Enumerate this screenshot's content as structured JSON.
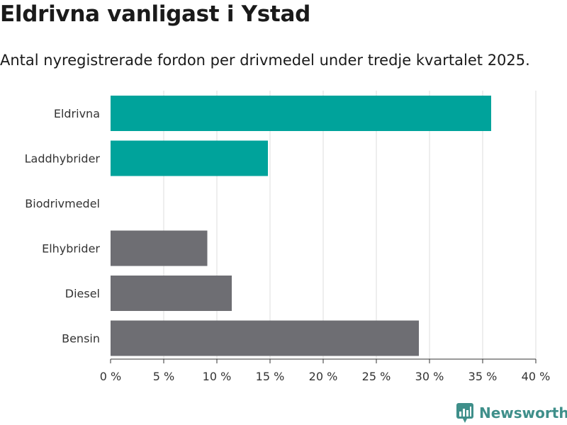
{
  "header": {
    "title": "Eldrivna vanligast i Ystad",
    "subtitle": "Antal nyregistrerade fordon per drivmedel under tredje kvartalet 2025."
  },
  "brand": {
    "name": "Newsworthy",
    "logo_icon": "newsworthy-bar-chart-icon"
  },
  "colors": {
    "highlight": "#00a39b",
    "default": "#6e6e73",
    "grid": "#dddddd",
    "axis": "#333333",
    "brand": "#3f8f8a"
  },
  "chart_data": {
    "type": "bar",
    "orientation": "horizontal",
    "title": "Eldrivna vanligast i Ystad",
    "subtitle": "Antal nyregistrerade fordon per drivmedel under tredje kvartalet 2025.",
    "categories": [
      "Eldrivna",
      "Laddhybrider",
      "Biodrivmedel",
      "Elhybrider",
      "Diesel",
      "Bensin"
    ],
    "values": [
      35.8,
      14.8,
      0,
      9.1,
      11.4,
      29.0
    ],
    "unit": "%",
    "highlight": [
      true,
      true,
      false,
      false,
      false,
      false
    ],
    "xlim": [
      0,
      40
    ],
    "xticks": [
      0,
      5,
      10,
      15,
      20,
      25,
      30,
      35,
      40
    ],
    "xtick_labels": [
      "0 %",
      "5 %",
      "10 %",
      "15 %",
      "20 %",
      "25 %",
      "30 %",
      "35 %",
      "40 %"
    ],
    "xlabel": "",
    "ylabel": "",
    "grid": true,
    "legend": "none"
  }
}
